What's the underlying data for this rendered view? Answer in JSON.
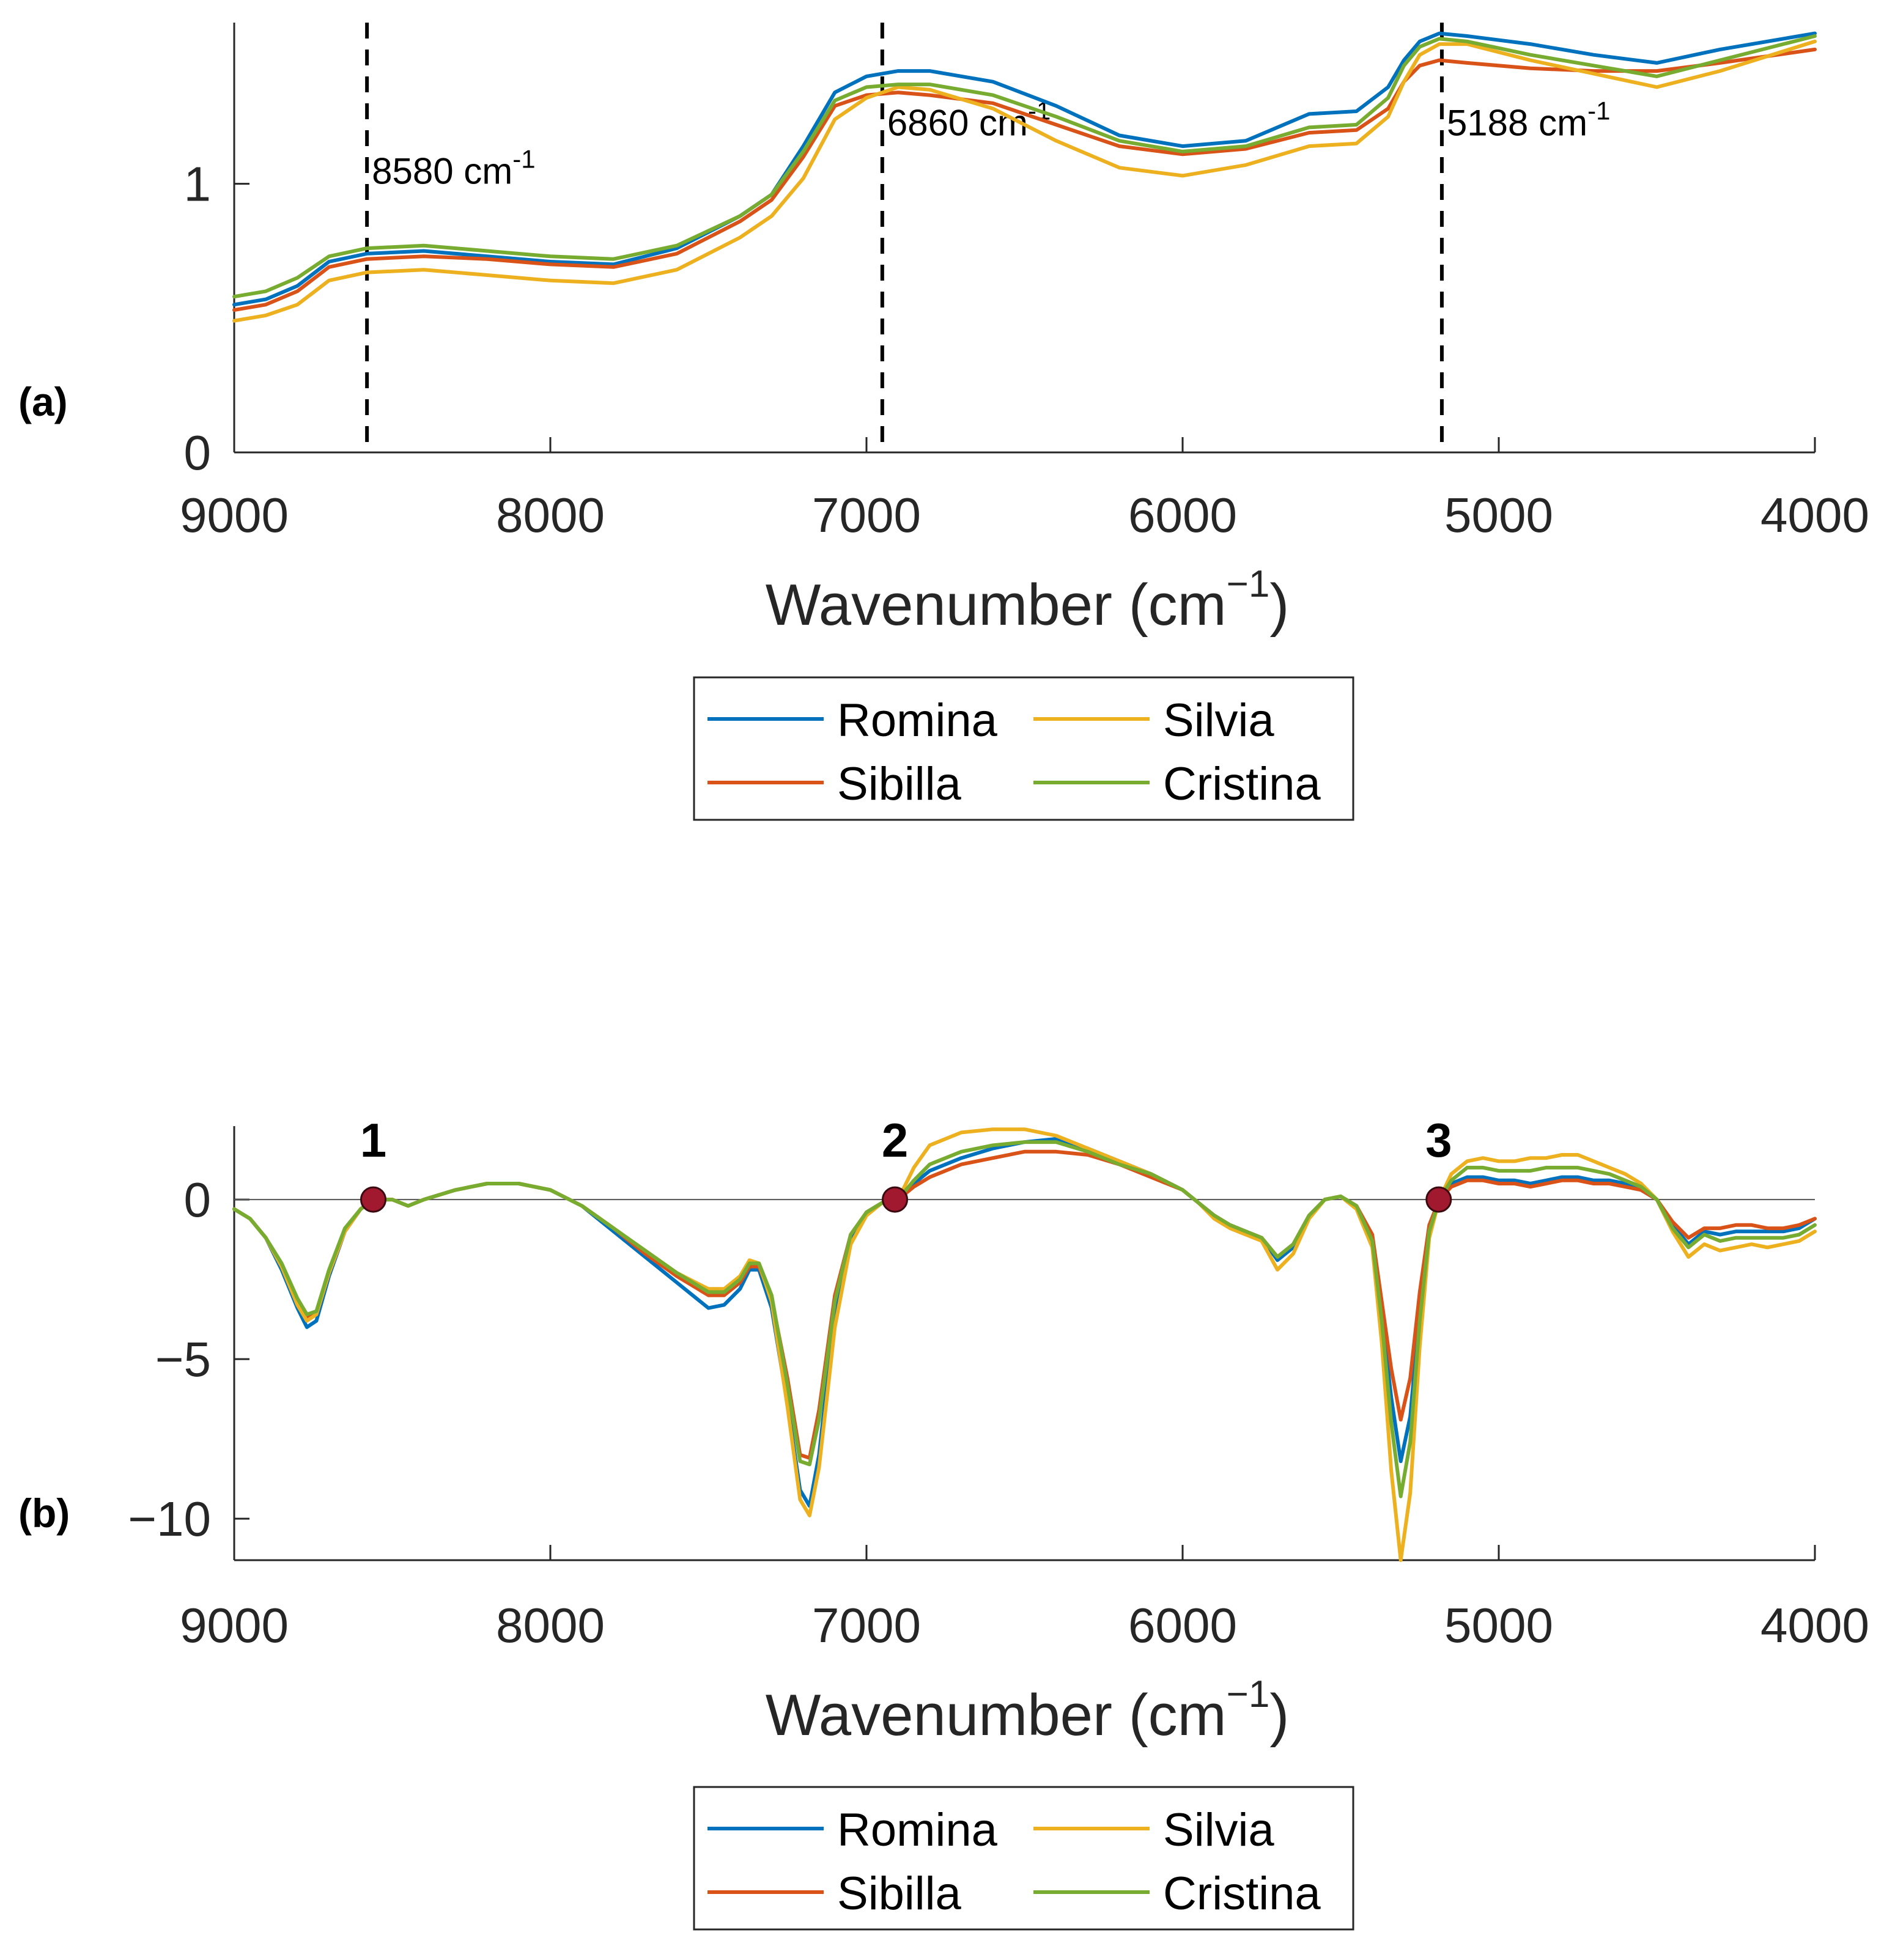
{
  "chart_data": [
    {
      "panel": "(a)",
      "type": "line",
      "title": "",
      "xlabel": "Wavenumber (cm",
      "xlabel_sup": "−1",
      "xlabel_end": ")",
      "ylabel": "",
      "xlim": [
        9000,
        4000
      ],
      "ylim": [
        0,
        1.6
      ],
      "x_ticks": [
        "9000",
        "8000",
        "7000",
        "6000",
        "5000",
        "4000"
      ],
      "y_ticks": [
        "0",
        "1"
      ],
      "x": [
        9000,
        8900,
        8800,
        8700,
        8580,
        8400,
        8200,
        8000,
        7800,
        7600,
        7400,
        7300,
        7200,
        7100,
        7000,
        6900,
        6800,
        6600,
        6400,
        6200,
        6000,
        5800,
        5600,
        5450,
        5350,
        5300,
        5250,
        5188,
        5100,
        4900,
        4700,
        4500,
        4300,
        4000
      ],
      "series": [
        {
          "name": "Romina",
          "color": "#0072BD",
          "values": [
            0.55,
            0.57,
            0.62,
            0.71,
            0.74,
            0.75,
            0.73,
            0.71,
            0.7,
            0.76,
            0.88,
            0.96,
            1.14,
            1.34,
            1.4,
            1.42,
            1.42,
            1.38,
            1.29,
            1.18,
            1.14,
            1.16,
            1.26,
            1.27,
            1.36,
            1.46,
            1.53,
            1.56,
            1.55,
            1.52,
            1.48,
            1.45,
            1.5,
            1.56
          ]
        },
        {
          "name": "Sibilla",
          "color": "#D95319",
          "values": [
            0.53,
            0.55,
            0.6,
            0.69,
            0.72,
            0.73,
            0.72,
            0.7,
            0.69,
            0.74,
            0.86,
            0.94,
            1.1,
            1.29,
            1.33,
            1.34,
            1.33,
            1.3,
            1.22,
            1.14,
            1.11,
            1.13,
            1.19,
            1.2,
            1.28,
            1.38,
            1.44,
            1.46,
            1.45,
            1.43,
            1.42,
            1.42,
            1.45,
            1.5
          ]
        },
        {
          "name": "Silvia",
          "color": "#EDB120",
          "values": [
            0.49,
            0.51,
            0.55,
            0.64,
            0.67,
            0.68,
            0.66,
            0.64,
            0.63,
            0.68,
            0.8,
            0.88,
            1.02,
            1.24,
            1.32,
            1.36,
            1.35,
            1.28,
            1.16,
            1.06,
            1.03,
            1.07,
            1.14,
            1.15,
            1.25,
            1.38,
            1.48,
            1.52,
            1.52,
            1.46,
            1.41,
            1.36,
            1.42,
            1.53
          ]
        },
        {
          "name": "Cristina",
          "color": "#77AC30",
          "values": [
            0.58,
            0.6,
            0.65,
            0.73,
            0.76,
            0.77,
            0.75,
            0.73,
            0.72,
            0.77,
            0.88,
            0.96,
            1.12,
            1.31,
            1.36,
            1.37,
            1.37,
            1.33,
            1.25,
            1.16,
            1.12,
            1.14,
            1.21,
            1.22,
            1.32,
            1.44,
            1.51,
            1.54,
            1.53,
            1.48,
            1.44,
            1.4,
            1.46,
            1.55
          ]
        }
      ],
      "annotations": [
        {
          "x": 8580,
          "text": "8580 cm",
          "sup": "-1",
          "text_y": 1.0
        },
        {
          "x": 6950,
          "text": "6860 cm",
          "sup": "-1",
          "text_y": 1.18
        },
        {
          "x": 5180,
          "text": "5188 cm",
          "sup": "-1",
          "text_y": 1.18
        }
      ],
      "legend": {
        "placement": "below",
        "columns": 2,
        "entries": [
          "Romina",
          "Silvia",
          "Sibilla",
          "Cristina"
        ]
      }
    },
    {
      "panel": "(b)",
      "type": "line",
      "title": "",
      "xlabel": "Wavenumber (cm",
      "xlabel_sup": "−1",
      "xlabel_end": ")",
      "ylabel": "",
      "xlim": [
        9000,
        4000
      ],
      "ylim": [
        -11.3,
        2.3
      ],
      "x_ticks": [
        "9000",
        "8000",
        "7000",
        "6000",
        "5000",
        "4000"
      ],
      "y_ticks": [
        "0",
        "−5",
        "−10"
      ],
      "zero_line": true,
      "x": [
        9000,
        8950,
        8900,
        8850,
        8800,
        8770,
        8740,
        8700,
        8650,
        8600,
        8560,
        8500,
        8450,
        8400,
        8300,
        8200,
        8100,
        8000,
        7900,
        7800,
        7700,
        7600,
        7500,
        7450,
        7400,
        7370,
        7340,
        7300,
        7250,
        7210,
        7180,
        7150,
        7100,
        7050,
        7000,
        6950,
        6900,
        6850,
        6800,
        6700,
        6600,
        6500,
        6400,
        6300,
        6200,
        6100,
        6000,
        5950,
        5900,
        5850,
        5800,
        5750,
        5700,
        5650,
        5600,
        5550,
        5500,
        5450,
        5400,
        5370,
        5340,
        5310,
        5280,
        5250,
        5220,
        5188,
        5150,
        5100,
        5050,
        5000,
        4950,
        4900,
        4850,
        4800,
        4750,
        4700,
        4650,
        4600,
        4550,
        4500,
        4450,
        4400,
        4350,
        4300,
        4250,
        4200,
        4150,
        4100,
        4050,
        4000
      ],
      "series": [
        {
          "name": "Romina",
          "color": "#0072BD",
          "values": [
            -0.3,
            -0.6,
            -1.2,
            -2.2,
            -3.4,
            -4.0,
            -3.8,
            -2.4,
            -1.0,
            -0.3,
            0.0,
            0.0,
            -0.2,
            0.0,
            0.3,
            0.5,
            0.5,
            0.3,
            -0.2,
            -1.0,
            -1.8,
            -2.6,
            -3.4,
            -3.3,
            -2.8,
            -2.2,
            -2.2,
            -3.4,
            -6.4,
            -9.1,
            -9.6,
            -8.0,
            -3.6,
            -1.2,
            -0.4,
            -0.1,
            0.0,
            0.5,
            0.9,
            1.3,
            1.6,
            1.8,
            1.9,
            1.6,
            1.2,
            0.8,
            0.3,
            -0.1,
            -0.5,
            -0.8,
            -1.0,
            -1.2,
            -1.9,
            -1.5,
            -0.5,
            0.0,
            0.1,
            -0.2,
            -1.2,
            -3.6,
            -6.2,
            -8.2,
            -6.8,
            -3.5,
            -0.9,
            0.0,
            0.5,
            0.7,
            0.7,
            0.6,
            0.6,
            0.5,
            0.6,
            0.7,
            0.7,
            0.6,
            0.6,
            0.5,
            0.3,
            0.0,
            -0.8,
            -1.4,
            -1.0,
            -1.1,
            -1.0,
            -1.0,
            -1.0,
            -1.0,
            -0.9,
            -0.6
          ]
        },
        {
          "name": "Sibilla",
          "color": "#D95319",
          "values": [
            -0.3,
            -0.6,
            -1.2,
            -2.1,
            -3.2,
            -3.7,
            -3.6,
            -2.3,
            -1.0,
            -0.3,
            0.0,
            0.0,
            -0.2,
            0.0,
            0.3,
            0.5,
            0.5,
            0.3,
            -0.2,
            -0.9,
            -1.7,
            -2.4,
            -3.0,
            -3.0,
            -2.6,
            -2.1,
            -2.1,
            -3.1,
            -5.6,
            -8.0,
            -8.1,
            -6.6,
            -3.0,
            -1.1,
            -0.4,
            -0.1,
            0.0,
            0.4,
            0.7,
            1.1,
            1.3,
            1.5,
            1.5,
            1.4,
            1.1,
            0.7,
            0.3,
            -0.1,
            -0.5,
            -0.8,
            -1.0,
            -1.2,
            -1.8,
            -1.4,
            -0.5,
            0.0,
            0.1,
            -0.2,
            -1.1,
            -3.2,
            -5.3,
            -6.9,
            -5.6,
            -2.9,
            -0.8,
            0.0,
            0.4,
            0.6,
            0.6,
            0.5,
            0.5,
            0.4,
            0.5,
            0.6,
            0.6,
            0.5,
            0.5,
            0.4,
            0.3,
            0.0,
            -0.7,
            -1.2,
            -0.9,
            -0.9,
            -0.8,
            -0.8,
            -0.9,
            -0.9,
            -0.8,
            -0.6
          ]
        },
        {
          "name": "Silvia",
          "color": "#EDB120",
          "values": [
            -0.3,
            -0.6,
            -1.2,
            -2.1,
            -3.3,
            -3.8,
            -3.6,
            -2.3,
            -1.0,
            -0.3,
            0.0,
            0.0,
            -0.2,
            0.0,
            0.3,
            0.5,
            0.5,
            0.3,
            -0.2,
            -0.9,
            -1.6,
            -2.3,
            -2.8,
            -2.8,
            -2.4,
            -1.9,
            -2.0,
            -3.2,
            -6.5,
            -9.4,
            -9.9,
            -8.4,
            -4.0,
            -1.4,
            -0.5,
            -0.1,
            0.0,
            1.0,
            1.7,
            2.1,
            2.2,
            2.2,
            2.0,
            1.6,
            1.2,
            0.8,
            0.3,
            -0.1,
            -0.6,
            -0.9,
            -1.1,
            -1.3,
            -2.2,
            -1.7,
            -0.6,
            0.0,
            0.1,
            -0.3,
            -1.5,
            -4.5,
            -8.5,
            -11.3,
            -9.2,
            -4.6,
            -1.2,
            0.0,
            0.8,
            1.2,
            1.3,
            1.2,
            1.2,
            1.3,
            1.3,
            1.4,
            1.4,
            1.2,
            1.0,
            0.8,
            0.5,
            0.0,
            -1.0,
            -1.8,
            -1.4,
            -1.6,
            -1.5,
            -1.4,
            -1.5,
            -1.4,
            -1.3,
            -1.0
          ]
        },
        {
          "name": "Cristina",
          "color": "#77AC30",
          "values": [
            -0.3,
            -0.6,
            -1.2,
            -2.0,
            -3.1,
            -3.6,
            -3.5,
            -2.2,
            -0.9,
            -0.3,
            0.0,
            0.0,
            -0.2,
            0.0,
            0.3,
            0.5,
            0.5,
            0.3,
            -0.2,
            -0.9,
            -1.6,
            -2.3,
            -2.9,
            -2.9,
            -2.5,
            -2.0,
            -2.0,
            -3.0,
            -5.8,
            -8.2,
            -8.3,
            -6.9,
            -3.2,
            -1.1,
            -0.4,
            -0.1,
            0.0,
            0.6,
            1.1,
            1.5,
            1.7,
            1.8,
            1.8,
            1.5,
            1.1,
            0.8,
            0.3,
            -0.1,
            -0.5,
            -0.8,
            -1.0,
            -1.2,
            -1.8,
            -1.4,
            -0.5,
            0.0,
            0.1,
            -0.2,
            -1.3,
            -3.8,
            -7.0,
            -9.3,
            -7.6,
            -3.8,
            -1.0,
            0.0,
            0.6,
            1.0,
            1.0,
            0.9,
            0.9,
            0.9,
            1.0,
            1.0,
            1.0,
            0.9,
            0.8,
            0.6,
            0.4,
            0.0,
            -0.9,
            -1.5,
            -1.1,
            -1.3,
            -1.2,
            -1.2,
            -1.2,
            -1.2,
            -1.1,
            -0.8
          ]
        }
      ],
      "markers": [
        {
          "x": 8560,
          "y": 0,
          "label": "1"
        },
        {
          "x": 6910,
          "y": 0,
          "label": "2"
        },
        {
          "x": 5190,
          "y": 0,
          "label": "3"
        }
      ],
      "marker_color": "#A0192E",
      "legend": {
        "placement": "below",
        "columns": 2,
        "entries": [
          "Romina",
          "Silvia",
          "Sibilla",
          "Cristina"
        ]
      }
    }
  ]
}
